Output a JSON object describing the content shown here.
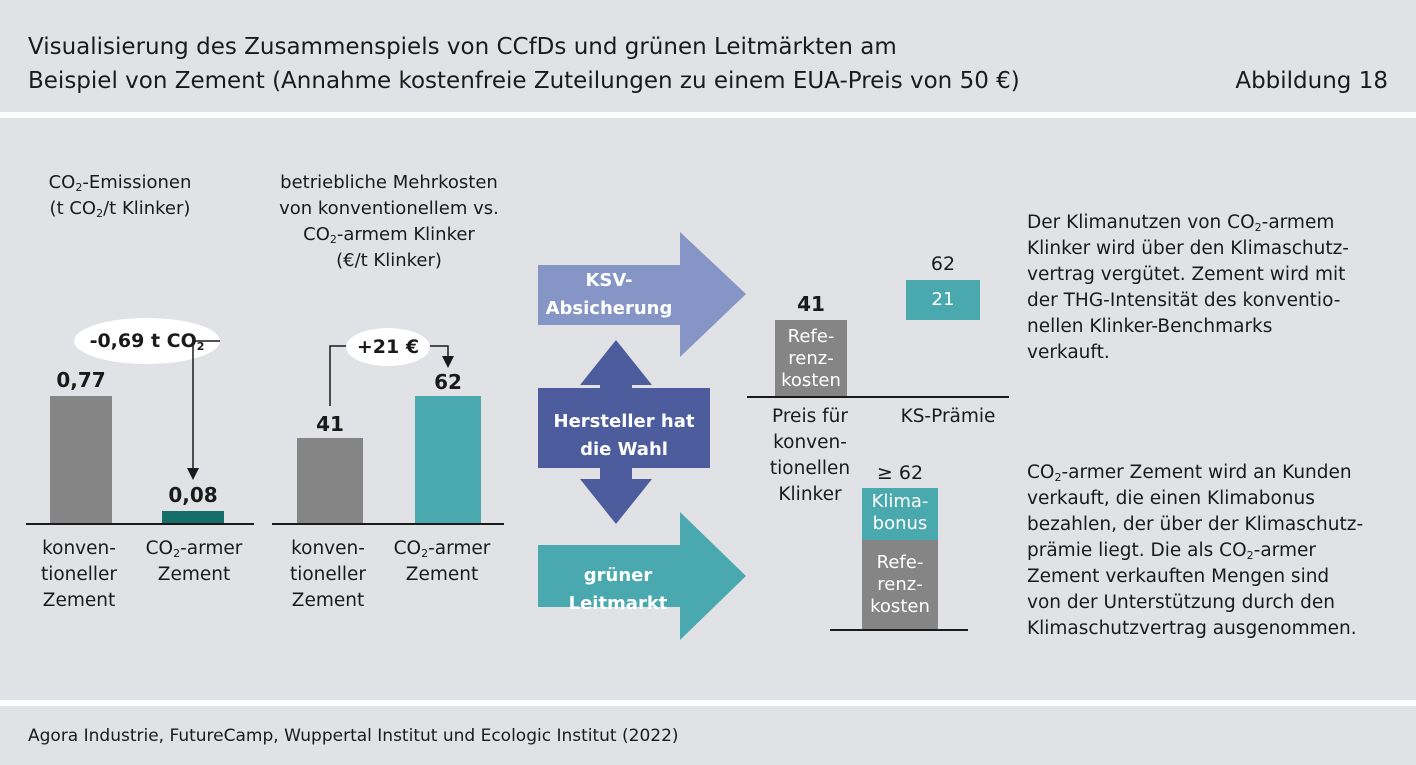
{
  "header": {
    "title_line1": "Visualisierung des Zusammenspiels von CCfDs und grünen Leitmärkten am",
    "title_line2": "Beispiel von Zement (Annahme kostenfreie Zuteilungen zu einem EUA-Preis von 50 €)",
    "figure_number": "Abbildung 18"
  },
  "emissions": {
    "header_line1_pre": "CO",
    "header_line1_sub": "2",
    "header_line1_post": "-Emissionen",
    "header_line2_pre": "(t CO",
    "header_line2_sub": "2",
    "header_line2_post": "/t Klinker)",
    "diff_pre": "-0,69 t CO",
    "diff_sub": "2",
    "conventional_value": "0,77",
    "low_co2_value": "0,08",
    "cat1_line1": "konven-",
    "cat1_line2": "tioneller",
    "cat1_line3": "Zement",
    "cat2_line1_pre": "CO",
    "cat2_line1_sub": "2",
    "cat2_line1_post": "-armer",
    "cat2_line2": "Zement"
  },
  "costs": {
    "header_line1": "betriebliche Mehrkosten",
    "header_line2": "von konventionellem vs.",
    "header_line3_pre": "CO",
    "header_line3_sub": "2",
    "header_line3_post": "-armem Klinker",
    "header_line4": "(€/t Klinker)",
    "diff": "+21 €",
    "conventional_value": "41",
    "low_co2_value": "62",
    "cat1_line1": "konven-",
    "cat1_line2": "tioneller",
    "cat1_line3": "Zement",
    "cat2_line1_pre": "CO",
    "cat2_line1_sub": "2",
    "cat2_line1_post": "-armer",
    "cat2_line2": "Zement"
  },
  "arrows": {
    "ksv_line1": "KSV-",
    "ksv_line2": "Absicherung",
    "choice_line1": "Hersteller hat",
    "choice_line2": "die Wahl",
    "green_market": "grüner Leitmarkt"
  },
  "ksv_chart": {
    "reference_value": "41",
    "reference_line1": "Refe-",
    "reference_line2": "renz-",
    "reference_line3": "kosten",
    "premium_total": "62",
    "premium_value": "21",
    "label1_line1": "Preis für",
    "label1_line2": "konven-",
    "label1_line3": "tionellen",
    "label1_line4": "Klinker",
    "label2": "KS-Prämie"
  },
  "green_chart": {
    "total": "≥ 62",
    "bonus_line1": "Klima-",
    "bonus_line2": "bonus",
    "reference_line1": "Refe-",
    "reference_line2": "renz-",
    "reference_line3": "kosten"
  },
  "descriptions": {
    "ksv_line1_pre": "Der Klimanutzen von CO",
    "ksv_line1_sub": "2",
    "ksv_line1_post": "-armem",
    "ksv_line2": "Klinker wird über den Klimaschutz-",
    "ksv_line3": "vertrag vergütet. Zement wird mit",
    "ksv_line4": "der THG-Intensität des konventio-",
    "ksv_line5": "nellen Klinker-Benchmarks",
    "ksv_line6": "verkauft.",
    "green_line1_pre": "CO",
    "green_line1_sub": "2",
    "green_line1_post": "-armer Zement wird an Kunden",
    "green_line2": "verkauft, die einen Klimabonus",
    "green_line3": "bezahlen, der über der Klimaschutz-",
    "green_line4_pre": "prämie liegt. Die als CO",
    "green_line4_sub": "2",
    "green_line4_post": "-armer",
    "green_line5": "Zement verkauften Mengen sind",
    "green_line6": "von der Unterstützung durch den",
    "green_line7": "Klimaschutzvertrag ausgenommen."
  },
  "footer": {
    "source": "Agora Industrie, FutureCamp, Wuppertal Institut und Ecologic Institut (2022)"
  },
  "colors": {
    "background": "#e1e2e6",
    "grey_bar": "#858585",
    "teal": "#4aa9af",
    "dark_teal": "#176d68",
    "arrow_blue_light": "#8495c6",
    "arrow_blue_dark": "#4c5c9c",
    "arrow_teal": "#4aa9af"
  }
}
